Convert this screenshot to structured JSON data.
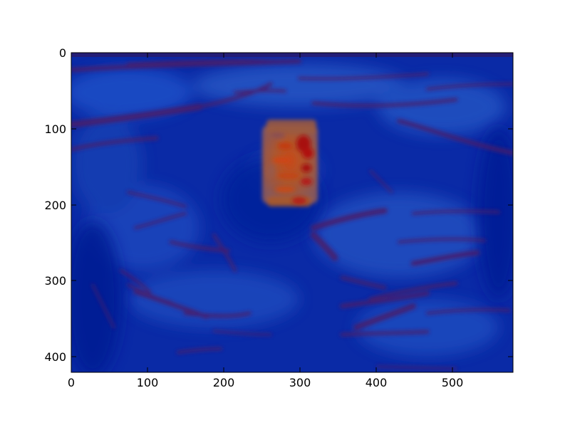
{
  "image": {
    "description_free": true,
    "colormap": "jet",
    "background": "#00239e",
    "hotspot_color": "#c0420c"
  },
  "axes": {
    "x_ticks": [
      0,
      100,
      200,
      300,
      400,
      500
    ],
    "y_ticks": [
      0,
      100,
      200,
      300,
      400
    ],
    "xlim": [
      0,
      580
    ],
    "ylim": [
      420,
      0
    ]
  },
  "labels": {
    "x0": "0",
    "x1": "100",
    "x2": "200",
    "x3": "300",
    "x4": "400",
    "x5": "500",
    "y0": "0",
    "y1": "100",
    "y2": "200",
    "y3": "300",
    "y4": "400"
  }
}
